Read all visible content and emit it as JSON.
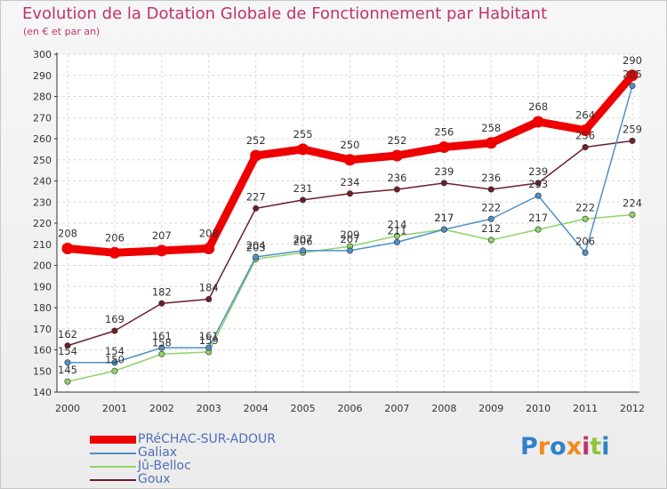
{
  "chart_data": {
    "type": "line",
    "title": "Evolution de la Dotation Globale de Fonctionnement par Habitant",
    "subtitle": "(en € et par an)",
    "xlabel": "",
    "ylabel": "",
    "ylim": [
      140,
      300
    ],
    "ytick_step": 10,
    "grid": true,
    "x": [
      "2000",
      "2001",
      "2002",
      "2003",
      "2004",
      "2005",
      "2006",
      "2007",
      "2008",
      "2009",
      "2010",
      "2011",
      "2012"
    ],
    "series": [
      {
        "name": "Goux",
        "color": "#6b1f2a",
        "values": [
          162,
          169,
          182,
          184,
          227,
          231,
          234,
          236,
          239,
          236,
          239,
          256,
          259
        ]
      },
      {
        "name": "Jû-Belloc",
        "color": "#8fd46a",
        "values": [
          145,
          150,
          158,
          159,
          203,
          206,
          209,
          214,
          217,
          212,
          217,
          222,
          224
        ]
      },
      {
        "name": "Galiax",
        "color": "#4f90c8",
        "values": [
          154,
          154,
          161,
          161,
          204,
          207,
          207,
          211,
          217,
          222,
          233,
          206,
          285
        ]
      },
      {
        "name": "PRéCHAC-SUR-ADOUR",
        "color": "#ee0000",
        "values": [
          208,
          206,
          207,
          208,
          252,
          255,
          250,
          252,
          256,
          258,
          268,
          264,
          290
        ]
      }
    ],
    "legend": {
      "placement": "bottom-left",
      "order": [
        "PRéCHAC-SUR-ADOUR",
        "Galiax",
        "Jû-Belloc",
        "Goux"
      ]
    }
  },
  "logo": {
    "letters": [
      "P",
      "r",
      "o",
      "x",
      "i",
      "t",
      "i"
    ]
  }
}
